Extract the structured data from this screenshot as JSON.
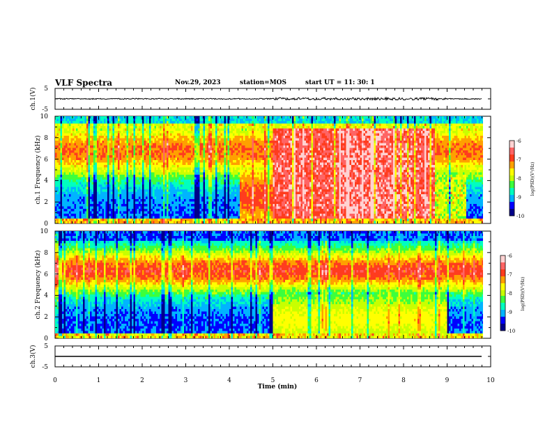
{
  "header": {
    "title": "VLF Spectra",
    "date": "Nov.29, 2023",
    "station": "station=MOS",
    "start_ut": "start  UT =   11: 30: 1"
  },
  "colors": {
    "colormap": [
      "#00008a",
      "#0000ff",
      "#00b4ff",
      "#00ffc0",
      "#3cff3c",
      "#c8ff00",
      "#ffff00",
      "#ffa000",
      "#ff3c1e",
      "#ff6464",
      "#ffd2d2"
    ],
    "axis": "#000000",
    "trace": "#000000"
  },
  "chart_data": [
    {
      "type": "line",
      "panel": "ch.1",
      "ylabel": "ch.1(V)",
      "ylim": [
        -5,
        5
      ],
      "yticks": [
        "5",
        "-5"
      ],
      "xlim": [
        0,
        10
      ],
      "series": [
        {
          "x": [
            0,
            9.8
          ],
          "y": [
            0,
            0
          ]
        }
      ]
    },
    {
      "type": "heatmap",
      "panel": "ch.1",
      "ylabel": "ch.1  Frequency (kHz)",
      "xlim": [
        0,
        10
      ],
      "ylim": [
        0,
        10
      ],
      "yticks": [
        "0",
        "2",
        "4",
        "6",
        "8",
        "10"
      ],
      "data_extent_min": 9.8,
      "colorbar": {
        "label": "log(PSD)(V²/Hz)",
        "range": [
          -10,
          -6
        ],
        "ticks": [
          "-6",
          "-7",
          "-8",
          "-9",
          "-10"
        ]
      },
      "features": [
        {
          "x_range": [
            0,
            4.2
          ],
          "description": "red band 5-9 kHz, blue/green below 4 kHz"
        },
        {
          "x_range": [
            4.2,
            5.0
          ],
          "description": "green/yellow broadband emission 0-4 kHz"
        },
        {
          "x_range": [
            5.0,
            8.7
          ],
          "description": "intense red/pink broadband emission 0.5-9 kHz"
        },
        {
          "x_range": [
            8.7,
            9.8
          ],
          "description": "green/yellow emission 0-4 kHz"
        }
      ]
    },
    {
      "type": "heatmap",
      "panel": "ch.2",
      "ylabel": "ch.2  Frequency (kHz)",
      "xlim": [
        0,
        10
      ],
      "ylim": [
        0,
        10
      ],
      "yticks": [
        "0",
        "2",
        "4",
        "6",
        "8",
        "10"
      ],
      "data_extent_min": 9.8,
      "colorbar": {
        "label": "log(PSD)(V²/Hz)",
        "range": [
          -10,
          -6
        ],
        "ticks": [
          "-6",
          "-7",
          "-8",
          "-9",
          "-10"
        ]
      },
      "features": [
        {
          "x_range": [
            0,
            9.8
          ],
          "description": "red band 5-8 kHz"
        },
        {
          "x_range": [
            5.0,
            9.0
          ],
          "description": "green/cyan emission 0-4 kHz"
        }
      ]
    },
    {
      "type": "line",
      "panel": "ch.3",
      "ylabel": "ch.3(V)",
      "ylim": [
        -5,
        5
      ],
      "yticks": [
        "5",
        "-5"
      ],
      "xlim": [
        0,
        10
      ],
      "series": [
        {
          "x": [
            0,
            9.8
          ],
          "y": [
            0,
            0
          ]
        }
      ]
    }
  ],
  "x_axis": {
    "label": "Time (min)",
    "ticks": [
      "0",
      "1",
      "2",
      "3",
      "4",
      "5",
      "6",
      "7",
      "8",
      "9",
      "10"
    ]
  }
}
